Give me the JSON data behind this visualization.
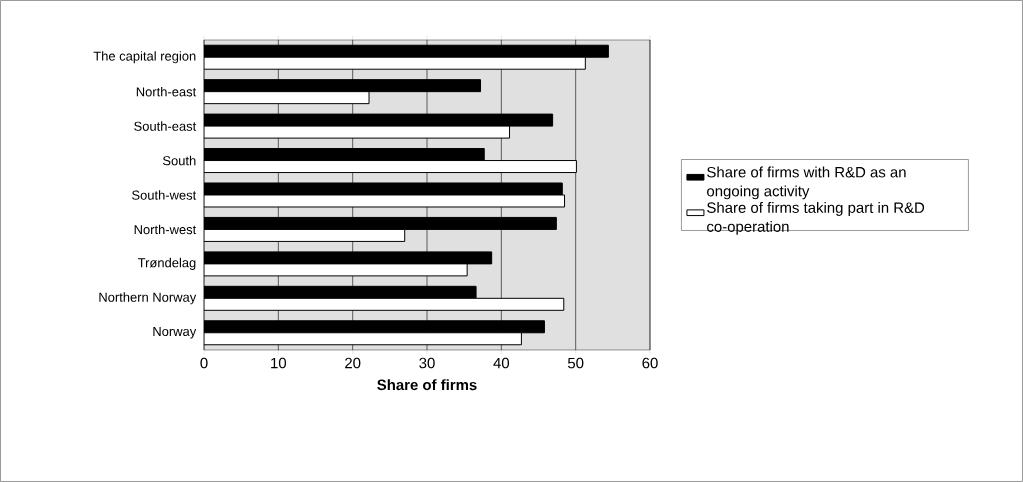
{
  "chart_data": {
    "type": "bar",
    "orientation": "horizontal",
    "xlabel": "Share of firms",
    "categories": [
      "The capital region",
      "North-east",
      "South-east",
      "South",
      "South-west",
      "North-west",
      "Trøndelag",
      "Northern Norway",
      "Norway"
    ],
    "series": [
      {
        "name": "Share of firms with R&D as an ongoing activity",
        "color": "#000000",
        "values": [
          54.4,
          37.2,
          46.9,
          37.7,
          48.2,
          47.4,
          38.7,
          36.6,
          45.8
        ]
      },
      {
        "name": "Share of firms taking part in R&D co-operation",
        "color": "#ffffff",
        "values": [
          51.3,
          22.2,
          41.1,
          50.1,
          48.5,
          27.0,
          35.4,
          48.4,
          42.7
        ]
      }
    ],
    "xlim": [
      0,
      60
    ],
    "xticks": [
      0,
      10,
      20,
      30,
      40,
      50,
      60
    ],
    "grid": "x",
    "legend": "right"
  }
}
